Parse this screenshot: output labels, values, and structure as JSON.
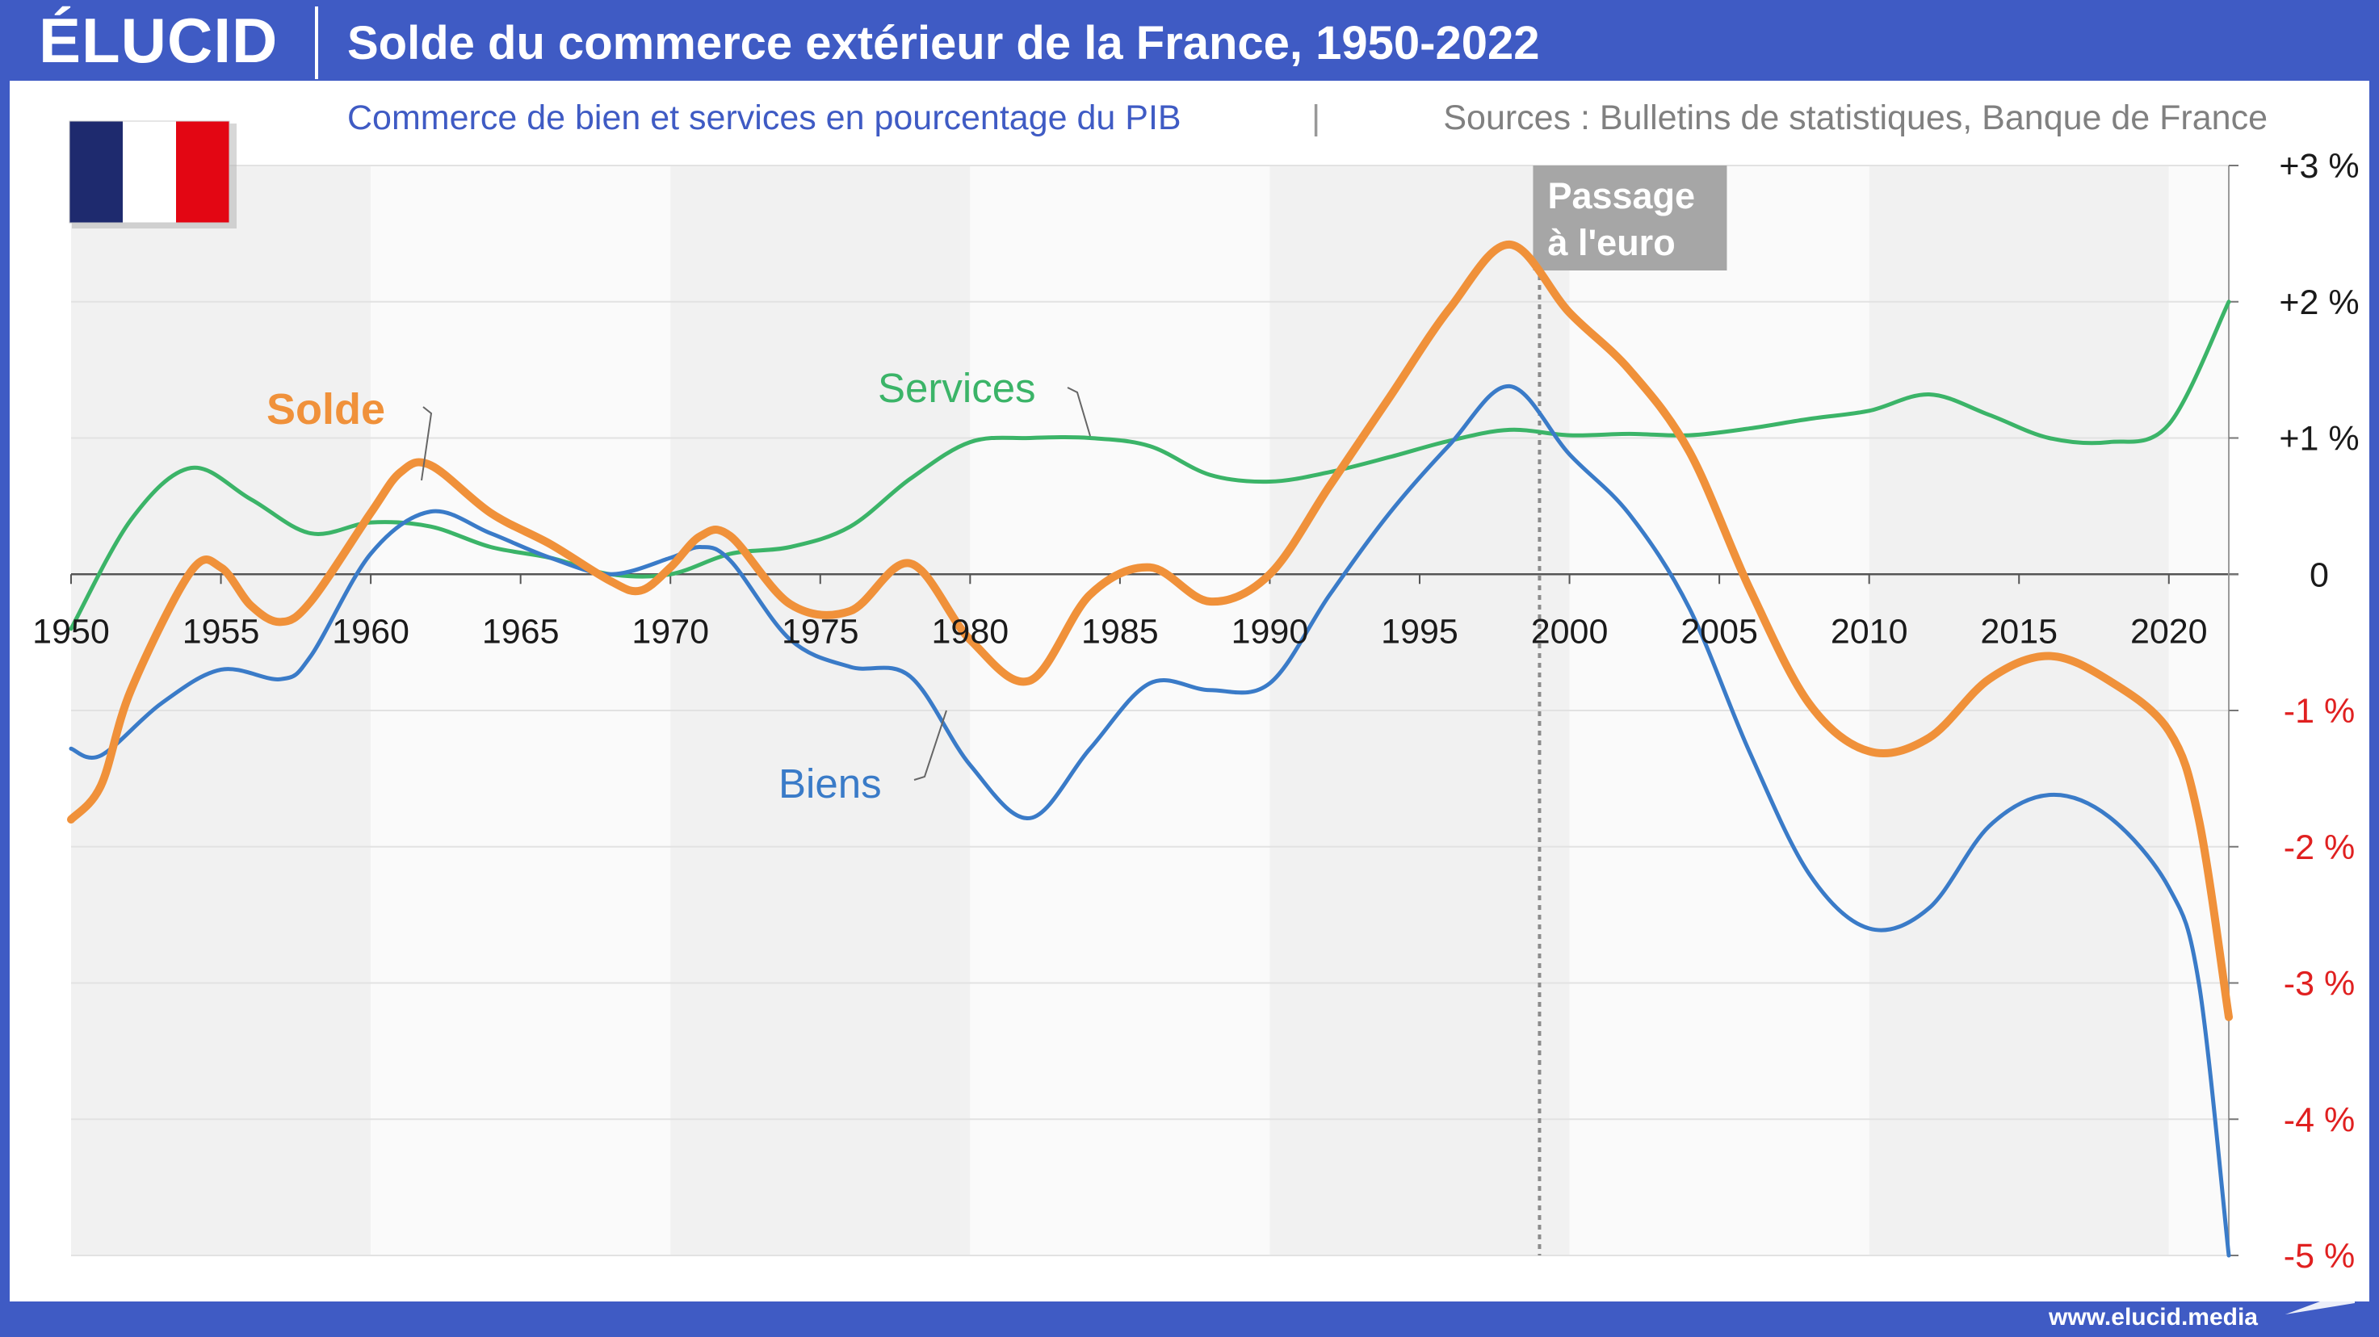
{
  "header": {
    "logo": "ÉLUCID",
    "title": "Solde du commerce extérieur de la France, 1950-2022"
  },
  "footer": {
    "url": "www.elucid.media"
  },
  "colors": {
    "brand": "#3f5bc4",
    "solde": "#f0913a",
    "services": "#3bb468",
    "biens": "#3a7bc8",
    "negative_tick": "#e02020",
    "annotation_box": "#a6a6a6"
  },
  "chart_data": {
    "type": "line",
    "subtitle": "Commerce de bien et services en pourcentage du PIB",
    "source": "Sources : Bulletins de statistiques, Banque de France",
    "xlim": [
      1950,
      2022
    ],
    "ylim": [
      -5,
      3
    ],
    "x_ticks": [
      1950,
      1955,
      1960,
      1965,
      1970,
      1975,
      1980,
      1985,
      1990,
      1995,
      2000,
      2005,
      2010,
      2015,
      2020
    ],
    "y_ticks": [
      {
        "value": 3,
        "label": "+3 %"
      },
      {
        "value": 2,
        "label": "+2 %"
      },
      {
        "value": 1,
        "label": "+1 %"
      },
      {
        "value": 0,
        "label": "0"
      },
      {
        "value": -1,
        "label": "-1 %"
      },
      {
        "value": -2,
        "label": "-2 %"
      },
      {
        "value": -3,
        "label": "-3 %"
      },
      {
        "value": -4,
        "label": "-4 %"
      },
      {
        "value": -5,
        "label": "-5 %"
      }
    ],
    "grid": true,
    "annotation": {
      "x": 1999,
      "label_lines": [
        "Passage",
        "à l'euro"
      ]
    },
    "series": [
      {
        "name": "Services",
        "color": "#3bb468",
        "x": [
          1950,
          1952,
          1954,
          1956,
          1958,
          1960,
          1962,
          1964,
          1966,
          1968,
          1970,
          1972,
          1974,
          1976,
          1978,
          1980,
          1982,
          1984,
          1986,
          1988,
          1990,
          1992,
          1994,
          1996,
          1998,
          2000,
          2002,
          2004,
          2006,
          2008,
          2010,
          2012,
          2014,
          2016,
          2018,
          2020,
          2022
        ],
        "values": [
          -0.4,
          0.4,
          0.78,
          0.55,
          0.3,
          0.38,
          0.35,
          0.2,
          0.12,
          0.0,
          0.0,
          0.15,
          0.2,
          0.35,
          0.7,
          0.97,
          1.0,
          1.0,
          0.94,
          0.73,
          0.68,
          0.75,
          0.86,
          0.98,
          1.06,
          1.02,
          1.03,
          1.02,
          1.07,
          1.14,
          1.2,
          1.32,
          1.17,
          1.0,
          0.97,
          1.1,
          2.0
        ]
      },
      {
        "name": "Biens",
        "color": "#3a7bc8",
        "x": [
          1950,
          1951,
          1953,
          1955,
          1957,
          1958,
          1960,
          1962,
          1964,
          1966,
          1968,
          1970,
          1971,
          1972,
          1974,
          1976,
          1978,
          1980,
          1982,
          1984,
          1986,
          1988,
          1990,
          1992,
          1994,
          1996,
          1998,
          2000,
          2002,
          2004,
          2006,
          2008,
          2010,
          2012,
          2014,
          2016,
          2018,
          2020,
          2021,
          2022
        ],
        "values": [
          -1.28,
          -1.33,
          -0.95,
          -0.7,
          -0.77,
          -0.6,
          0.15,
          0.46,
          0.3,
          0.12,
          0.0,
          0.12,
          0.2,
          0.1,
          -0.48,
          -0.68,
          -0.75,
          -1.4,
          -1.79,
          -1.28,
          -0.8,
          -0.85,
          -0.8,
          -0.15,
          0.45,
          0.95,
          1.38,
          0.88,
          0.44,
          -0.25,
          -1.3,
          -2.2,
          -2.6,
          -2.45,
          -1.85,
          -1.62,
          -1.78,
          -2.3,
          -3.0,
          -5.0
        ]
      },
      {
        "name": "Solde",
        "color": "#f0913a",
        "x": [
          1950,
          1951,
          1952,
          1954,
          1955,
          1956,
          1957,
          1958,
          1960,
          1961,
          1962,
          1964,
          1966,
          1968,
          1969,
          1970,
          1971,
          1972,
          1974,
          1976,
          1978,
          1980,
          1982,
          1984,
          1986,
          1988,
          1990,
          1992,
          1994,
          1996,
          1998,
          2000,
          2002,
          2004,
          2006,
          2008,
          2010,
          2012,
          2014,
          2016,
          2018,
          2020,
          2021,
          2022
        ],
        "values": [
          -1.8,
          -1.55,
          -0.85,
          0.02,
          0.05,
          -0.23,
          -0.35,
          -0.2,
          0.45,
          0.75,
          0.8,
          0.45,
          0.22,
          -0.05,
          -0.12,
          0.05,
          0.28,
          0.28,
          -0.22,
          -0.27,
          0.08,
          -0.48,
          -0.78,
          -0.15,
          0.05,
          -0.2,
          0.0,
          0.65,
          1.3,
          1.95,
          2.42,
          1.92,
          1.5,
          0.9,
          -0.1,
          -0.95,
          -1.3,
          -1.2,
          -0.77,
          -0.6,
          -0.78,
          -1.15,
          -1.8,
          -3.25
        ]
      }
    ],
    "series_labels": [
      {
        "series": "Solde",
        "text": "Solde"
      },
      {
        "series": "Services",
        "text": "Services"
      },
      {
        "series": "Biens",
        "text": "Biens"
      }
    ]
  }
}
